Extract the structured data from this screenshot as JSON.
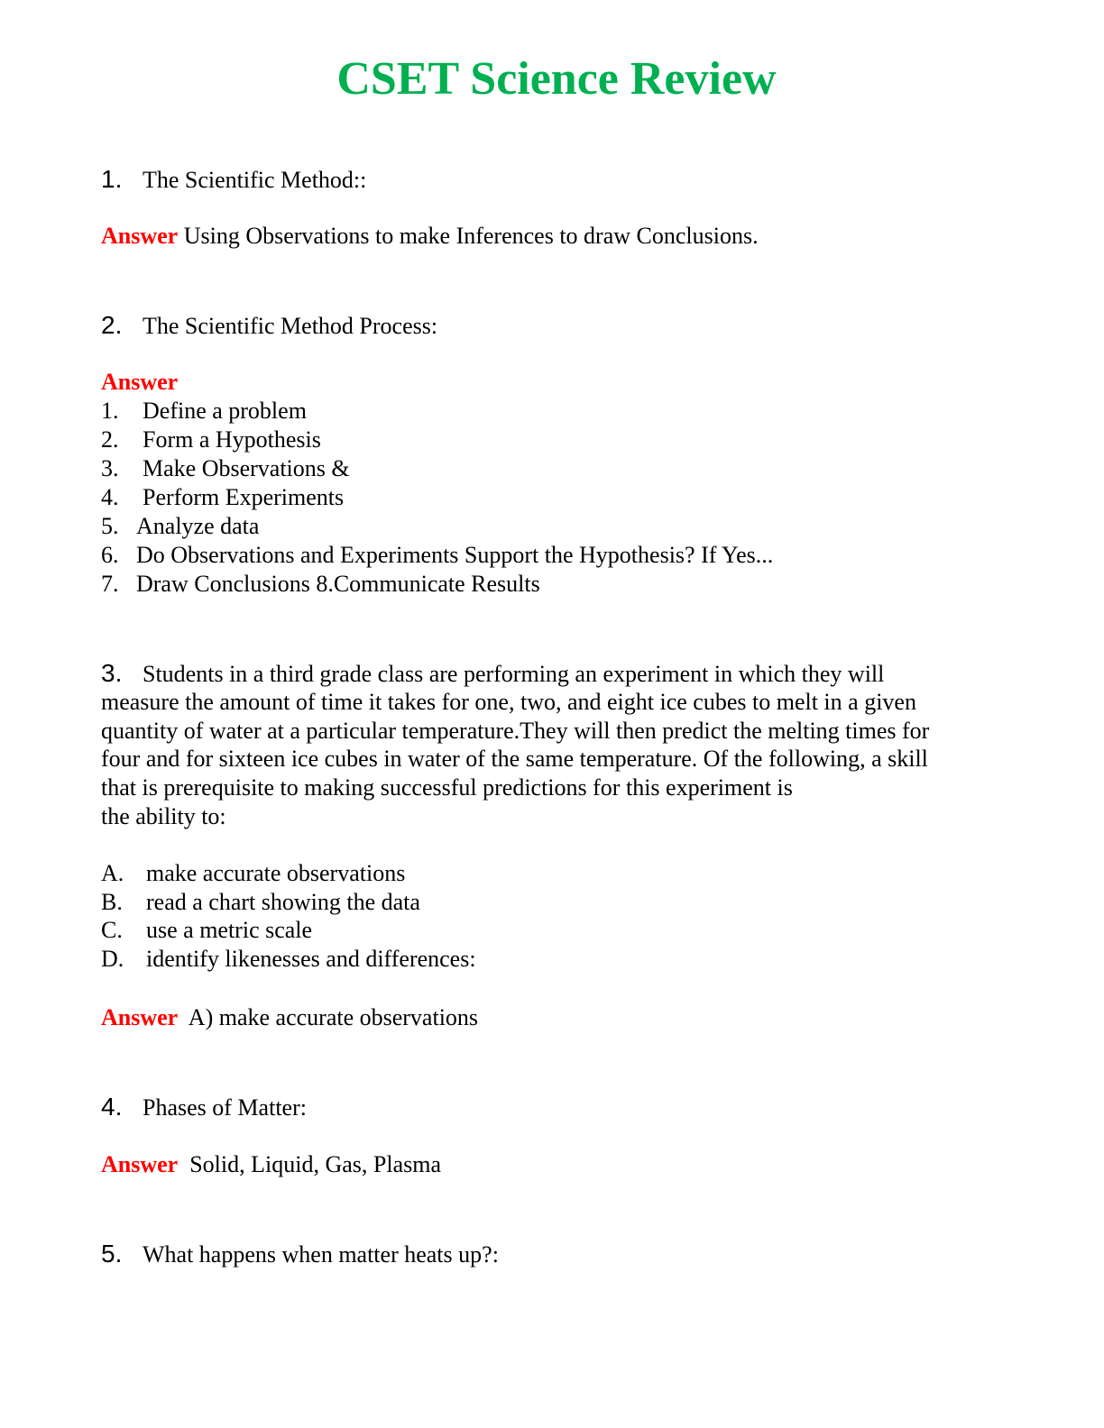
{
  "title": "CSET Science Review",
  "answer_label": "Answer",
  "q1": {
    "num": "1.",
    "question": "The Scientific Method::",
    "answer": "Using Observations to make Inferences to draw Conclusions."
  },
  "q2": {
    "num": "2.",
    "question": "The Scientific Method Process:",
    "steps": [
      {
        "n": "1.",
        "t": "Define a problem"
      },
      {
        "n": "2.",
        "t": "Form a Hypothesis"
      },
      {
        "n": "3.",
        "t": "Make Observations &"
      },
      {
        "n": "4.",
        "t": "Perform Experiments"
      },
      {
        "n": "5.",
        "t": "Analyze data"
      },
      {
        "n": "6.",
        "t": "Do Observations and Experiments Support the Hypothesis? If Yes..."
      },
      {
        "n": "7.",
        "t": "Draw Conclusions 8.Communicate Results"
      }
    ]
  },
  "q3": {
    "num": "3.",
    "lines": [
      "Students in a third grade class are performing an experiment in which they will",
      "measure the amount of time it takes for one, two, and eight ice cubes to melt in a given",
      "quantity of water at a particular temperature.They will then predict the melting times for",
      "four and for sixteen ice cubes in water of the same temperature. Of the following, a skill",
      "that is prerequisite to making successful predictions for this experiment is",
      "the ability to:"
    ],
    "options": [
      {
        "l": "A.",
        "t": "make accurate observations"
      },
      {
        "l": "B.",
        "t": "read a chart showing the data"
      },
      {
        "l": "C.",
        "t": "use a metric scale"
      },
      {
        "l": "D.",
        "t": "identify likenesses and differences:"
      }
    ],
    "answer": "A) make accurate observations"
  },
  "q4": {
    "num": "4.",
    "question": "Phases of Matter:",
    "answer": "Solid, Liquid, Gas, Plasma"
  },
  "q5": {
    "num": "5.",
    "question": "What happens when matter heats up?:"
  },
  "colors": {
    "title": "#00b050",
    "answer": "#ff0000"
  }
}
